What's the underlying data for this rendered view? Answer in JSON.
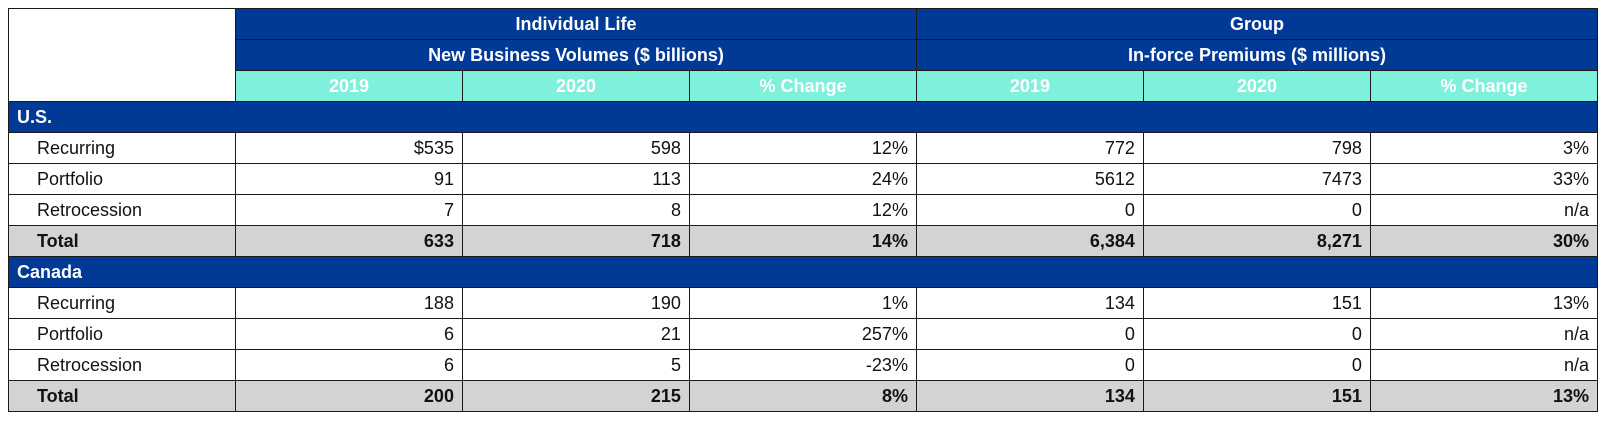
{
  "header": {
    "group_a_title": "Individual Life",
    "group_a_subtitle": "New Business Volumes ($ billions)",
    "group_b_title": "Group",
    "group_b_subtitle": "In-force Premiums ($ millions)",
    "columns": [
      "2019",
      "2020",
      "% Change",
      "2019",
      "2020",
      "% Change"
    ]
  },
  "sections": [
    {
      "name": "U.S.",
      "rows": [
        {
          "label": "Recurring",
          "values": [
            "$535",
            "598",
            "12%",
            "772",
            "798",
            "3%"
          ]
        },
        {
          "label": "Portfolio",
          "values": [
            "91",
            "113",
            "24%",
            "5612",
            "7473",
            "33%"
          ]
        },
        {
          "label": "Retrocession",
          "values": [
            "7",
            "8",
            "12%",
            "0",
            "0",
            "n/a"
          ]
        }
      ],
      "total": {
        "label": "Total",
        "values": [
          "633",
          "718",
          "14%",
          "6,384",
          "8,271",
          "30%"
        ]
      }
    },
    {
      "name": "Canada",
      "rows": [
        {
          "label": "Recurring",
          "values": [
            "188",
            "190",
            "1%",
            "134",
            "151",
            "13%"
          ]
        },
        {
          "label": "Portfolio",
          "values": [
            "6",
            "21",
            "257%",
            "0",
            "0",
            "n/a"
          ]
        },
        {
          "label": "Retrocession",
          "values": [
            "6",
            "5",
            "-23%",
            "0",
            "0",
            "n/a"
          ]
        }
      ],
      "total": {
        "label": "Total",
        "values": [
          "200",
          "215",
          "8%",
          "134",
          "151",
          "13%"
        ]
      }
    }
  ],
  "colors": {
    "header_blue": "#003a96",
    "year_teal": "#7ff0dc",
    "total_gray": "#d3d3d3"
  }
}
